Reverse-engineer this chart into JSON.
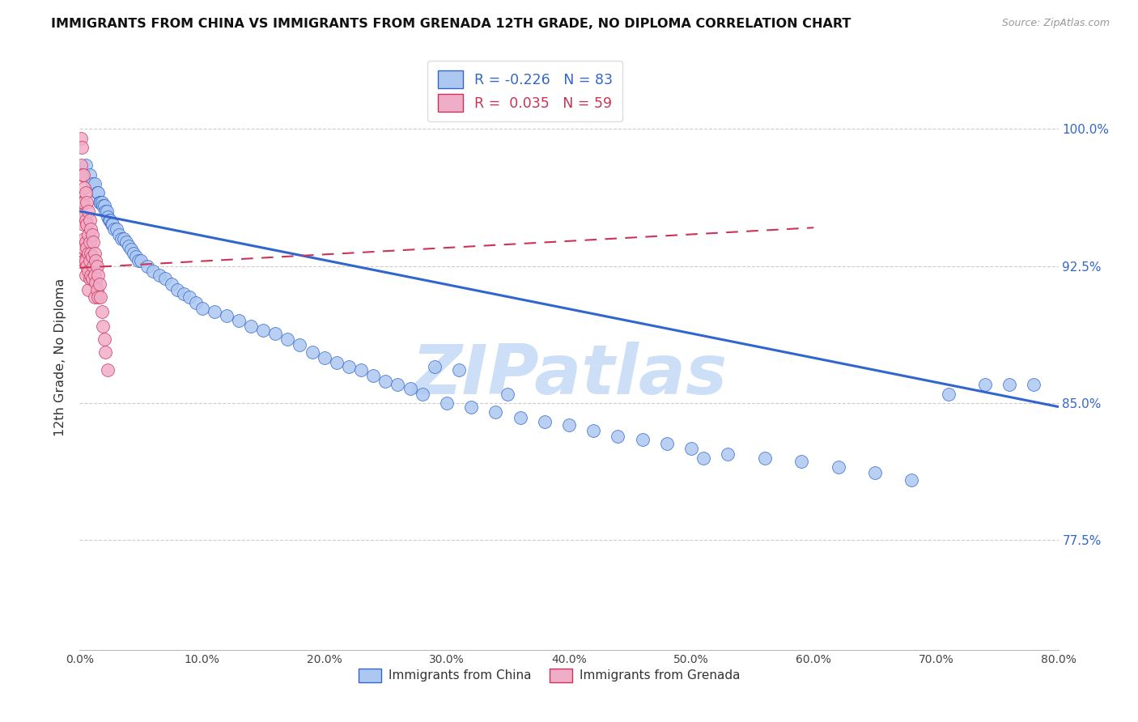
{
  "title": "IMMIGRANTS FROM CHINA VS IMMIGRANTS FROM GRENADA 12TH GRADE, NO DIPLOMA CORRELATION CHART",
  "source": "Source: ZipAtlas.com",
  "ylabel": "12th Grade, No Diploma",
  "legend_china": "Immigrants from China",
  "legend_grenada": "Immigrants from Grenada",
  "r_china": "-0.226",
  "n_china": "83",
  "r_grenada": "0.035",
  "n_grenada": "59",
  "color_china": "#adc8f0",
  "color_grenada": "#f0adc8",
  "color_china_line": "#3366cc",
  "color_grenada_line": "#cc3355",
  "watermark_color": "#c8dcf5",
  "xlim": [
    0.0,
    0.8
  ],
  "ylim": [
    0.715,
    1.035
  ],
  "ytick_vals": [
    1.0,
    0.925,
    0.85,
    0.775
  ],
  "ytick_labels": [
    "100.0%",
    "92.5%",
    "85.0%",
    "77.5%"
  ],
  "china_x": [
    0.005,
    0.008,
    0.01,
    0.012,
    0.014,
    0.015,
    0.016,
    0.017,
    0.018,
    0.019,
    0.02,
    0.021,
    0.022,
    0.023,
    0.024,
    0.025,
    0.026,
    0.027,
    0.028,
    0.03,
    0.032,
    0.034,
    0.036,
    0.038,
    0.04,
    0.042,
    0.044,
    0.046,
    0.048,
    0.05,
    0.055,
    0.06,
    0.065,
    0.07,
    0.075,
    0.08,
    0.085,
    0.09,
    0.095,
    0.1,
    0.11,
    0.12,
    0.13,
    0.14,
    0.15,
    0.16,
    0.17,
    0.18,
    0.19,
    0.2,
    0.21,
    0.22,
    0.23,
    0.24,
    0.25,
    0.26,
    0.27,
    0.28,
    0.3,
    0.32,
    0.34,
    0.36,
    0.38,
    0.4,
    0.42,
    0.44,
    0.46,
    0.48,
    0.5,
    0.53,
    0.56,
    0.59,
    0.62,
    0.65,
    0.68,
    0.71,
    0.74,
    0.76,
    0.78,
    0.29,
    0.31,
    0.35,
    0.51
  ],
  "china_y": [
    0.98,
    0.975,
    0.97,
    0.97,
    0.965,
    0.965,
    0.96,
    0.96,
    0.96,
    0.958,
    0.958,
    0.955,
    0.955,
    0.952,
    0.95,
    0.95,
    0.948,
    0.948,
    0.945,
    0.945,
    0.942,
    0.94,
    0.94,
    0.938,
    0.936,
    0.934,
    0.932,
    0.93,
    0.928,
    0.928,
    0.925,
    0.922,
    0.92,
    0.918,
    0.915,
    0.912,
    0.91,
    0.908,
    0.905,
    0.902,
    0.9,
    0.898,
    0.895,
    0.892,
    0.89,
    0.888,
    0.885,
    0.882,
    0.878,
    0.875,
    0.872,
    0.87,
    0.868,
    0.865,
    0.862,
    0.86,
    0.858,
    0.855,
    0.85,
    0.848,
    0.845,
    0.842,
    0.84,
    0.838,
    0.835,
    0.832,
    0.83,
    0.828,
    0.825,
    0.822,
    0.82,
    0.818,
    0.815,
    0.812,
    0.808,
    0.855,
    0.86,
    0.86,
    0.86,
    0.87,
    0.868,
    0.855,
    0.82
  ],
  "grenada_x": [
    0.001,
    0.001,
    0.001,
    0.002,
    0.002,
    0.002,
    0.002,
    0.002,
    0.003,
    0.003,
    0.003,
    0.003,
    0.003,
    0.004,
    0.004,
    0.004,
    0.004,
    0.005,
    0.005,
    0.005,
    0.005,
    0.005,
    0.006,
    0.006,
    0.006,
    0.006,
    0.007,
    0.007,
    0.007,
    0.007,
    0.007,
    0.008,
    0.008,
    0.008,
    0.008,
    0.009,
    0.009,
    0.009,
    0.01,
    0.01,
    0.01,
    0.011,
    0.011,
    0.012,
    0.012,
    0.012,
    0.013,
    0.013,
    0.014,
    0.014,
    0.015,
    0.015,
    0.016,
    0.017,
    0.018,
    0.019,
    0.02,
    0.021,
    0.023
  ],
  "grenada_y": [
    0.995,
    0.98,
    0.96,
    0.99,
    0.975,
    0.96,
    0.95,
    0.935,
    0.975,
    0.96,
    0.948,
    0.935,
    0.928,
    0.968,
    0.952,
    0.94,
    0.928,
    0.965,
    0.95,
    0.938,
    0.928,
    0.92,
    0.96,
    0.948,
    0.935,
    0.925,
    0.955,
    0.942,
    0.932,
    0.922,
    0.912,
    0.95,
    0.938,
    0.928,
    0.918,
    0.945,
    0.932,
    0.92,
    0.942,
    0.93,
    0.918,
    0.938,
    0.925,
    0.932,
    0.92,
    0.908,
    0.928,
    0.916,
    0.925,
    0.912,
    0.92,
    0.908,
    0.915,
    0.908,
    0.9,
    0.892,
    0.885,
    0.878,
    0.868
  ],
  "china_line_x": [
    0.0,
    0.8
  ],
  "china_line_y": [
    0.955,
    0.848
  ],
  "grenada_line_x": [
    0.0,
    0.6
  ],
  "grenada_line_y": [
    0.924,
    0.946
  ]
}
